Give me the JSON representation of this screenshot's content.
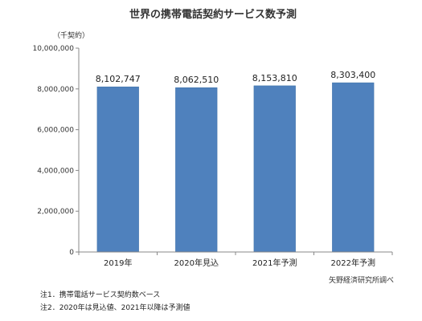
{
  "chart_data": {
    "type": "bar",
    "title": "世界の携帯電話契約サービス数予測",
    "unit_label": "（千契約）",
    "categories": [
      "2019年",
      "2020年見込",
      "2021年予測",
      "2022年予測"
    ],
    "values": [
      8102747,
      8062510,
      8153810,
      8303400
    ],
    "value_labels": [
      "8,102,747",
      "8,062,510",
      "8,153,810",
      "8,303,400"
    ],
    "ylim": [
      0,
      10000000
    ],
    "yticks": [
      0,
      2000000,
      4000000,
      6000000,
      8000000,
      10000000
    ],
    "ytick_labels": [
      "0",
      "2,000,000",
      "4,000,000",
      "6,000,000",
      "8,000,000",
      "10,000,000"
    ],
    "grid": false,
    "bar_color": "#4f81bd",
    "bar_edge_color": "#3a6ea5",
    "source": "矢野経済研究所調べ"
  },
  "notes": [
    "注1．携帯電話サービス契約数ベース",
    "注2．2020年は見込値、2021年以降は予測値"
  ]
}
